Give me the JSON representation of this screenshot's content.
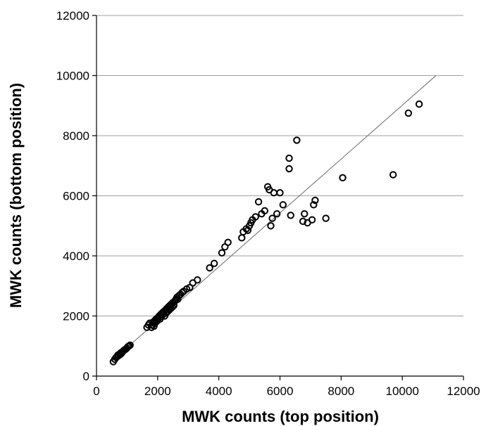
{
  "chart_data": {
    "type": "scatter",
    "title": "",
    "xlabel": "MWK counts (top position)",
    "ylabel": "MWK counts (bottom position)",
    "xlim": [
      0,
      12000
    ],
    "ylim": [
      0,
      12000
    ],
    "xticks": [
      "0",
      "2000",
      "4000",
      "6000",
      "8000",
      "10000",
      "12000"
    ],
    "yticks": [
      "0",
      "2000",
      "4000",
      "6000",
      "8000",
      "10000",
      "12000"
    ],
    "grid": "horizontal",
    "legend": "none",
    "marker": "open-circle",
    "colors": {
      "marker": "#000000",
      "line": "#808080",
      "grid": "#a0a0a0",
      "axis": "#000000"
    },
    "reference_line": {
      "x": [
        500,
        11100
      ],
      "y": [
        500,
        10000
      ]
    },
    "series": [
      {
        "points": [
          [
            550,
            480
          ],
          [
            600,
            560
          ],
          [
            640,
            620
          ],
          [
            680,
            650
          ],
          [
            700,
            700
          ],
          [
            720,
            680
          ],
          [
            760,
            740
          ],
          [
            780,
            720
          ],
          [
            800,
            780
          ],
          [
            820,
            760
          ],
          [
            850,
            810
          ],
          [
            880,
            840
          ],
          [
            900,
            860
          ],
          [
            930,
            880
          ],
          [
            960,
            900
          ],
          [
            990,
            930
          ],
          [
            1030,
            980
          ],
          [
            1060,
            1000
          ],
          [
            1100,
            1030
          ],
          [
            1650,
            1620
          ],
          [
            1700,
            1700
          ],
          [
            1740,
            1760
          ],
          [
            1800,
            1620
          ],
          [
            1820,
            1700
          ],
          [
            1850,
            1800
          ],
          [
            1880,
            1660
          ],
          [
            1900,
            1750
          ],
          [
            1930,
            1880
          ],
          [
            1950,
            1800
          ],
          [
            1980,
            1920
          ],
          [
            2000,
            1850
          ],
          [
            2020,
            1960
          ],
          [
            2050,
            2000
          ],
          [
            2080,
            1900
          ],
          [
            2100,
            2050
          ],
          [
            2120,
            1980
          ],
          [
            2150,
            2100
          ],
          [
            2180,
            2050
          ],
          [
            2200,
            2150
          ],
          [
            2230,
            2000
          ],
          [
            2260,
            2200
          ],
          [
            2280,
            2100
          ],
          [
            2300,
            2250
          ],
          [
            2330,
            2150
          ],
          [
            2350,
            2300
          ],
          [
            2380,
            2200
          ],
          [
            2400,
            2350
          ],
          [
            2430,
            2250
          ],
          [
            2450,
            2400
          ],
          [
            2480,
            2300
          ],
          [
            2500,
            2450
          ],
          [
            2530,
            2350
          ],
          [
            2560,
            2500
          ],
          [
            2600,
            2550
          ],
          [
            2630,
            2620
          ],
          [
            2660,
            2560
          ],
          [
            2700,
            2680
          ],
          [
            2750,
            2720
          ],
          [
            2800,
            2780
          ],
          [
            2850,
            2820
          ],
          [
            2950,
            2900
          ],
          [
            3050,
            2950
          ],
          [
            3150,
            3100
          ],
          [
            3300,
            3200
          ],
          [
            3700,
            3600
          ],
          [
            3850,
            3750
          ],
          [
            4100,
            4100
          ],
          [
            4200,
            4300
          ],
          [
            4300,
            4450
          ],
          [
            4750,
            4600
          ],
          [
            4800,
            4800
          ],
          [
            4900,
            4900
          ],
          [
            4950,
            4850
          ],
          [
            5000,
            5000
          ],
          [
            5050,
            5100
          ],
          [
            5100,
            5200
          ],
          [
            5200,
            5300
          ],
          [
            5300,
            5800
          ],
          [
            5400,
            5400
          ],
          [
            5500,
            5500
          ],
          [
            5600,
            6300
          ],
          [
            5650,
            6200
          ],
          [
            5700,
            5000
          ],
          [
            5750,
            5250
          ],
          [
            5800,
            6100
          ],
          [
            5900,
            5400
          ],
          [
            6000,
            6100
          ],
          [
            6100,
            5700
          ],
          [
            6300,
            7250
          ],
          [
            6300,
            6900
          ],
          [
            6350,
            5350
          ],
          [
            6550,
            7850
          ],
          [
            6750,
            5150
          ],
          [
            6800,
            5400
          ],
          [
            6900,
            5100
          ],
          [
            7050,
            5200
          ],
          [
            7100,
            5700
          ],
          [
            7150,
            5850
          ],
          [
            7500,
            5250
          ],
          [
            8050,
            6600
          ],
          [
            9700,
            6700
          ],
          [
            10200,
            8750
          ],
          [
            10550,
            9050
          ]
        ]
      }
    ]
  }
}
